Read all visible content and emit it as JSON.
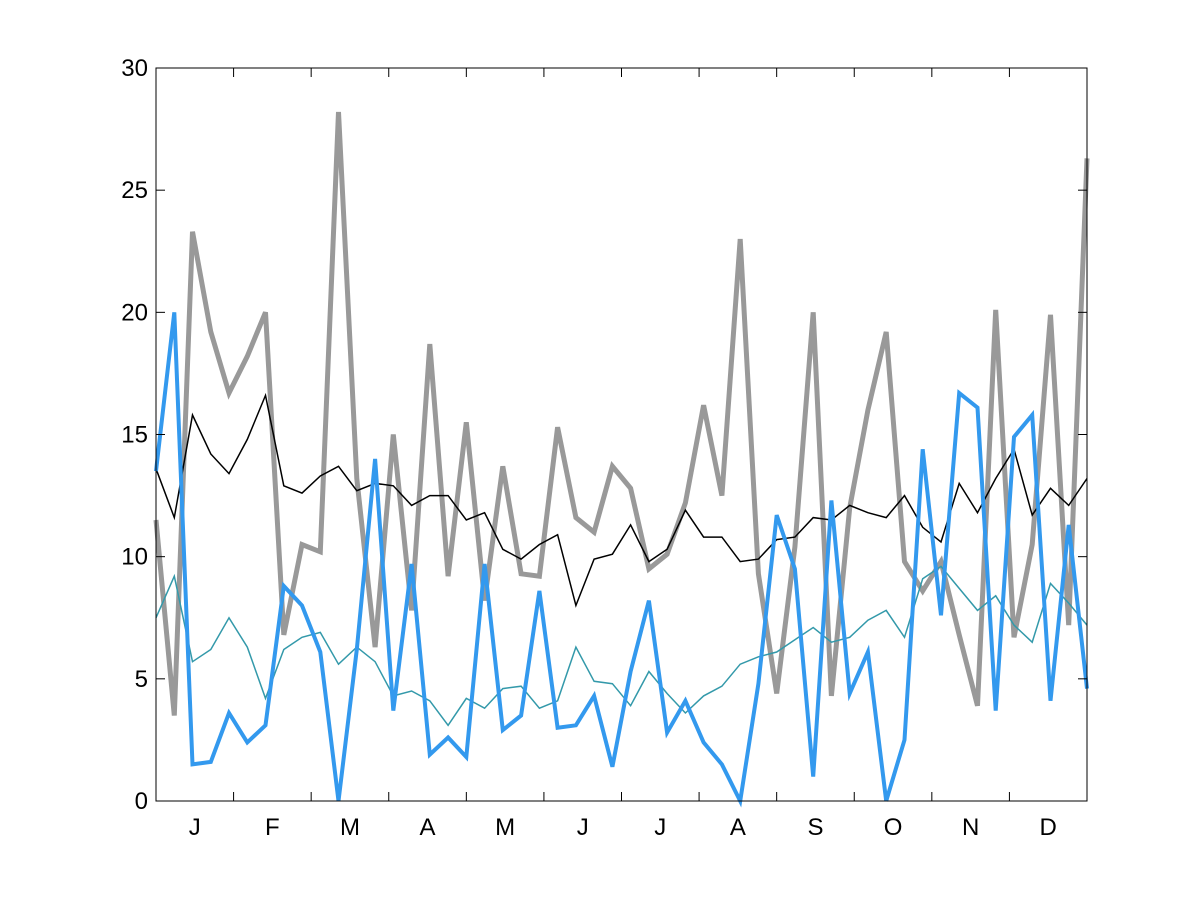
{
  "chart_data": {
    "type": "line",
    "title": "",
    "xlabel": "",
    "ylabel": "",
    "ylim": [
      0,
      30
    ],
    "yticks": [
      0,
      5,
      10,
      15,
      20,
      25,
      30
    ],
    "xlim": [
      0,
      12
    ],
    "month_labels": [
      "J",
      "F",
      "M",
      "A",
      "M",
      "J",
      "J",
      "A",
      "S",
      "O",
      "N",
      "D"
    ],
    "grid": false,
    "legend": "none",
    "series": [
      {
        "color": "#999999",
        "width": 5,
        "values": [
          11.5,
          3.5,
          23.3,
          19.2,
          16.7,
          18.2,
          20.0,
          6.8,
          10.5,
          10.2,
          28.2,
          13.2,
          6.3,
          15.0,
          7.8,
          18.7,
          9.2,
          15.5,
          8.2,
          13.7,
          9.3,
          9.2,
          15.3,
          11.6,
          11.0,
          13.7,
          12.8,
          9.5,
          10.1,
          12.2,
          16.2,
          12.5,
          23.0,
          9.3,
          4.4,
          10.4,
          20.0,
          4.3,
          12.0,
          16.0,
          19.2,
          9.8,
          8.6,
          9.8,
          6.8,
          3.9,
          20.1,
          6.7,
          10.5,
          19.9,
          7.2,
          26.3
        ]
      },
      {
        "color": "#000000",
        "width": 1.5,
        "values": [
          13.6,
          11.6,
          15.8,
          14.2,
          13.4,
          14.8,
          16.6,
          12.9,
          12.6,
          13.3,
          13.7,
          12.7,
          13.0,
          12.9,
          12.1,
          12.5,
          12.5,
          11.5,
          11.8,
          10.3,
          9.9,
          10.5,
          10.9,
          8.0,
          9.9,
          10.1,
          11.3,
          9.8,
          10.3,
          11.9,
          10.8,
          10.8,
          9.8,
          9.9,
          10.7,
          10.8,
          11.6,
          11.5,
          12.1,
          11.8,
          11.6,
          12.5,
          11.2,
          10.6,
          13.0,
          11.8,
          13.2,
          14.4,
          11.7,
          12.8,
          12.1,
          13.2
        ]
      },
      {
        "color": "#3399aa",
        "width": 1.5,
        "values": [
          7.5,
          9.2,
          5.7,
          6.2,
          7.5,
          6.3,
          4.2,
          6.2,
          6.7,
          6.9,
          5.6,
          6.3,
          5.7,
          4.3,
          4.5,
          4.1,
          3.1,
          4.2,
          3.8,
          4.6,
          4.7,
          3.8,
          4.1,
          6.3,
          4.9,
          4.8,
          3.9,
          5.3,
          4.4,
          3.6,
          4.3,
          4.7,
          5.6,
          5.9,
          6.1,
          6.6,
          7.1,
          6.5,
          6.7,
          7.4,
          7.8,
          6.7,
          9.1,
          9.6,
          8.7,
          7.8,
          8.4,
          7.2,
          6.5,
          8.9,
          8.1,
          7.2
        ]
      },
      {
        "color": "#3399ee",
        "width": 4,
        "values": [
          13.5,
          20.0,
          1.5,
          1.6,
          3.6,
          2.4,
          3.1,
          8.8,
          8.0,
          6.1,
          0.0,
          6.2,
          14.0,
          3.7,
          9.7,
          1.9,
          2.6,
          1.8,
          9.7,
          2.9,
          3.5,
          8.6,
          3.0,
          3.1,
          4.3,
          1.4,
          5.3,
          8.2,
          2.8,
          4.1,
          2.4,
          1.5,
          0.0,
          4.8,
          11.7,
          9.5,
          1.0,
          12.3,
          4.4,
          6.1,
          0.0,
          2.5,
          14.4,
          7.6,
          16.7,
          16.1,
          3.7,
          14.9,
          15.8,
          4.1,
          11.3,
          4.6
        ]
      }
    ]
  }
}
